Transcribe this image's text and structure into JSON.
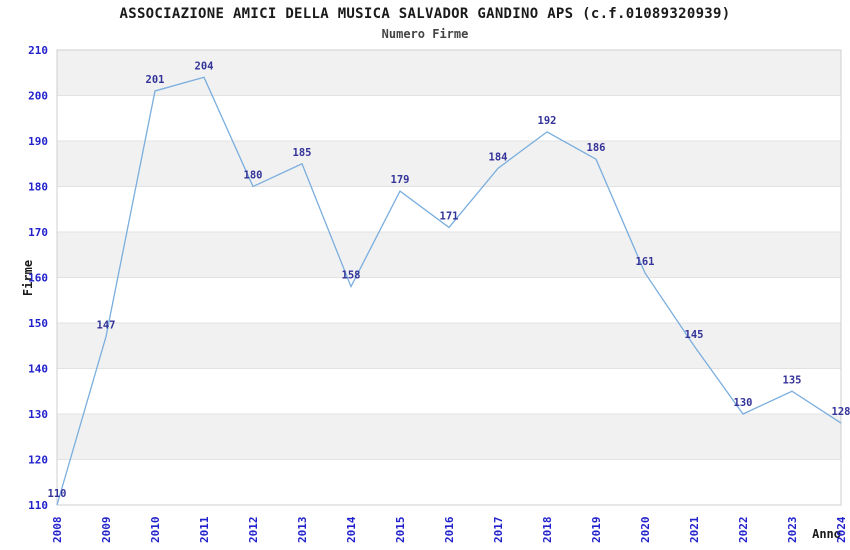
{
  "chart_data": {
    "type": "line",
    "title": "ASSOCIAZIONE AMICI DELLA MUSICA SALVADOR GANDINO APS (c.f.01089320939)",
    "subtitle": "Numero Firme",
    "xlabel": "Anno",
    "ylabel": "Firme",
    "categories": [
      "2008",
      "2009",
      "2010",
      "2011",
      "2012",
      "2013",
      "2014",
      "2015",
      "2016",
      "2017",
      "2018",
      "2019",
      "2020",
      "2021",
      "2022",
      "2023",
      "2024"
    ],
    "values": [
      110,
      147,
      201,
      204,
      180,
      185,
      158,
      179,
      171,
      184,
      192,
      186,
      161,
      145,
      130,
      135,
      128
    ],
    "ylim": [
      110,
      210
    ],
    "ytick_step": 10,
    "yticks": [
      110,
      120,
      130,
      140,
      150,
      160,
      170,
      180,
      190,
      200,
      210
    ],
    "grid": "horizontal-bands-alternating",
    "legend": "none",
    "point_labels_shown": true,
    "colors": {
      "line": "#7aaede",
      "point_label": "#333399",
      "tick_label": "#2222cc",
      "band": "#f1f1f1",
      "gridline": "#e2e2e2",
      "border": "#cfcfcf",
      "title": "#1a1a1a",
      "background": "#ffffff"
    }
  }
}
